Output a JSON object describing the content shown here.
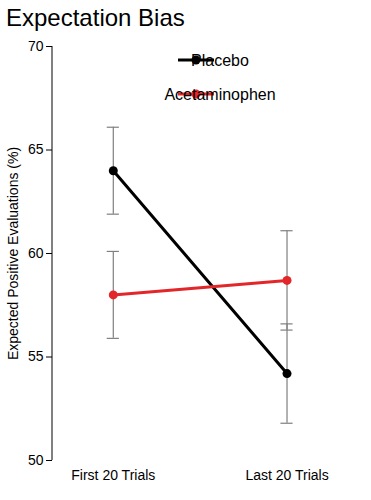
{
  "chart_data": {
    "type": "line",
    "title": "Expectation Bias",
    "y_label": "Expected Positive Evaluations (%)",
    "categories": [
      "First 20 Trials",
      "Last 20 Trials"
    ],
    "series": [
      {
        "name": "Placebo",
        "color": "#000000",
        "values": [
          64.0,
          54.2
        ],
        "errors": [
          2.1,
          2.4
        ],
        "marker": "circle",
        "line_style": "solid"
      },
      {
        "name": "Acetaminophen",
        "color": "#e3262a",
        "values": [
          58.0,
          58.7
        ],
        "errors": [
          2.1,
          2.4
        ],
        "marker": "circle",
        "line_style": "solid"
      }
    ],
    "ylim": [
      50,
      70
    ],
    "yticks": [
      50,
      55,
      60,
      65,
      70
    ],
    "grid": false,
    "legend": "upper right"
  }
}
